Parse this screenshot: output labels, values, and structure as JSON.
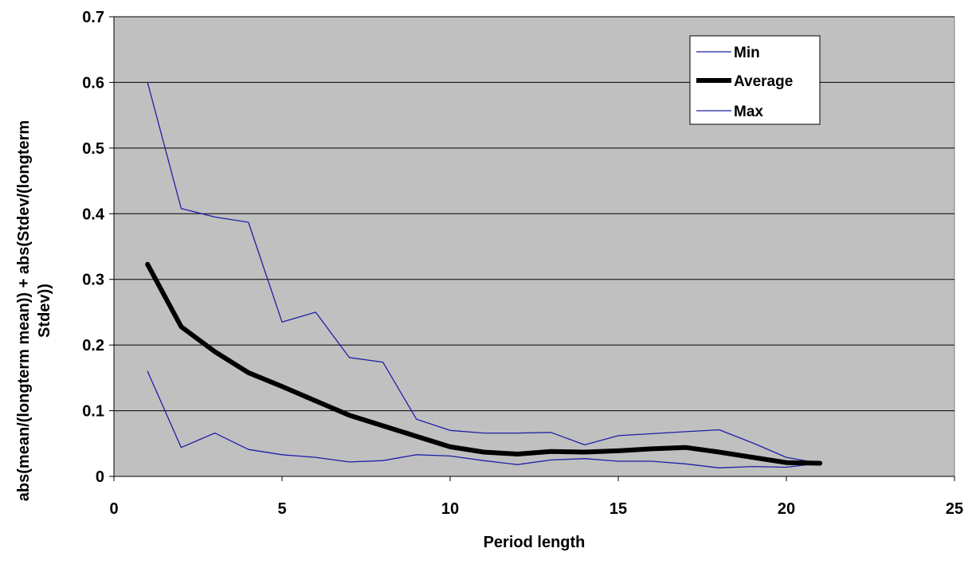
{
  "chart_data": {
    "type": "line",
    "title": "",
    "xlabel": "Period length",
    "ylabel_lines": [
      "abs(mean/(longterm mean))  + abs(Stdev/(longterm",
      "Stdev))"
    ],
    "xlim": [
      0,
      25
    ],
    "ylim": [
      0,
      0.7
    ],
    "x_ticks": [
      "0",
      "5",
      "10",
      "15",
      "20",
      "25"
    ],
    "y_ticks": [
      "0",
      "0.1",
      "0.2",
      "0.3",
      "0.4",
      "0.5",
      "0.6",
      "0.7"
    ],
    "grid": "horizontal",
    "plot_background": "#c0c0c0",
    "legend_position": "top-right",
    "x": [
      1,
      2,
      3,
      4,
      5,
      6,
      7,
      8,
      9,
      10,
      11,
      12,
      13,
      14,
      15,
      16,
      17,
      18,
      19,
      20,
      21
    ],
    "series": [
      {
        "name": "Min",
        "color": "#1f1fa8",
        "line_weight": "thin",
        "values": [
          0.6,
          0.408,
          0.395,
          0.387,
          0.235,
          0.25,
          0.181,
          0.174,
          0.087,
          0.07,
          0.066,
          0.066,
          0.067,
          0.048,
          0.062,
          0.065,
          0.068,
          0.071,
          0.051,
          0.029,
          0.02
        ]
      },
      {
        "name": "Average",
        "color": "#000000",
        "line_weight": "thick",
        "values": [
          0.323,
          0.228,
          0.19,
          0.158,
          0.137,
          0.115,
          0.093,
          0.077,
          0.061,
          0.045,
          0.037,
          0.034,
          0.038,
          0.037,
          0.039,
          0.042,
          0.044,
          0.037,
          0.029,
          0.021,
          0.02
        ]
      },
      {
        "name": "Max",
        "color": "#1f1fa8",
        "line_weight": "thin",
        "values": [
          0.16,
          0.044,
          0.066,
          0.041,
          0.033,
          0.029,
          0.022,
          0.024,
          0.033,
          0.031,
          0.024,
          0.018,
          0.025,
          0.027,
          0.023,
          0.023,
          0.019,
          0.013,
          0.015,
          0.014,
          0.02
        ]
      }
    ]
  }
}
